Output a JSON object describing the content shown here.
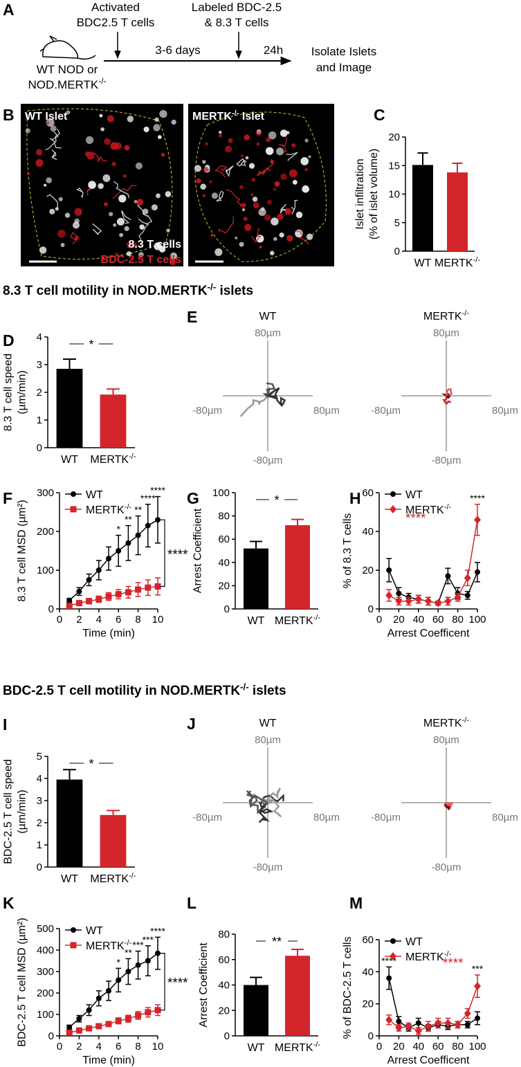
{
  "schematic": {
    "panel": "A",
    "start": [
      "WT NOD or",
      "NOD.MERTK-/-"
    ],
    "step1": [
      "Activated",
      "BDC2.5 T cells"
    ],
    "step2": [
      "Labeled BDC-2.5",
      "& 8.3 T cells"
    ],
    "interval1": "3-6 days",
    "interval2": "24h",
    "end": [
      "Isolate Islets",
      "and Image"
    ]
  },
  "images": {
    "panel": "B",
    "left_title": "WT Islet",
    "right_title": "MERTK-/- Islet",
    "legend": [
      "8.3 T cells",
      "BDC-2.5 T cells"
    ]
  },
  "sections": [
    "8.3 T cell motility in NOD.MERTK-/- islets",
    "BDC-2.5 T cell motility in NOD.MERTK-/- islets"
  ],
  "tracks": [
    {
      "panel": "E",
      "titles": [
        "WT",
        "MERTK-/-"
      ],
      "axis_labels": {
        "top": "80µm",
        "left": "-80µm",
        "right": "80µm",
        "bottom": "-80µm"
      }
    },
    {
      "panel": "J",
      "titles": [
        "WT",
        "MERTK-/-"
      ],
      "axis_labels": {
        "top": "80µm",
        "left": "-80µm",
        "right": "80µm",
        "bottom": "-80µm"
      }
    }
  ],
  "chart_data": [
    {
      "type": "bar",
      "panel": "C",
      "ylabel": [
        "Islet infiltration",
        "(% of islet volume)"
      ],
      "categories": [
        "WT",
        "MERTK-/-"
      ],
      "values": [
        15.1,
        13.8
      ],
      "errors": [
        2.1,
        1.6
      ],
      "colors": [
        "#000000",
        "#d3262c"
      ],
      "ylim": [
        0,
        20
      ],
      "yticks": [
        0,
        5,
        10,
        15,
        20
      ]
    },
    {
      "type": "bar",
      "panel": "D",
      "ylabel": [
        "8.3 T cell speed",
        "(µm/min)"
      ],
      "categories": [
        "WT",
        "MERTK-/-"
      ],
      "values": [
        2.85,
        1.92
      ],
      "errors": [
        0.35,
        0.2
      ],
      "colors": [
        "#000000",
        "#d3262c"
      ],
      "ylim": [
        0,
        4
      ],
      "yticks": [
        0,
        1,
        2,
        3,
        4
      ],
      "significance": "*"
    },
    {
      "type": "line",
      "panel": "F",
      "ylabel": "8.3 T cell MSD (µm²)",
      "xlabel": "Time (min)",
      "x": [
        1,
        2,
        3,
        4,
        5,
        6,
        7,
        8,
        9,
        10
      ],
      "xlim": [
        0,
        10
      ],
      "xticks": [
        0,
        2,
        4,
        6,
        8,
        10
      ],
      "ylim": [
        0,
        300
      ],
      "yticks": [
        0,
        100,
        200,
        300
      ],
      "series": [
        {
          "name": "WT",
          "color": "#000000",
          "marker": "circle",
          "values": [
            22,
            45,
            75,
            100,
            130,
            150,
            170,
            190,
            215,
            230
          ],
          "errors": [
            5,
            10,
            15,
            25,
            30,
            40,
            45,
            50,
            55,
            60
          ],
          "point_labels": [
            null,
            null,
            null,
            null,
            null,
            "*",
            "**",
            "**",
            "****",
            "****"
          ]
        },
        {
          "name": "MERTK-/-",
          "color": "#d3262c",
          "marker": "square",
          "values": [
            8,
            15,
            20,
            25,
            32,
            38,
            43,
            50,
            55,
            58
          ],
          "errors": [
            3,
            5,
            7,
            8,
            10,
            12,
            15,
            18,
            20,
            22
          ]
        }
      ],
      "bracket_label": "****"
    },
    {
      "type": "bar",
      "panel": "G",
      "ylabel": [
        "Arrest Coefficient"
      ],
      "categories": [
        "WT",
        "MERTK-/-"
      ],
      "values": [
        52,
        72
      ],
      "errors": [
        6,
        5
      ],
      "colors": [
        "#000000",
        "#d3262c"
      ],
      "ylim": [
        0,
        100
      ],
      "yticks": [
        0,
        20,
        40,
        60,
        80,
        100
      ],
      "significance": "*"
    },
    {
      "type": "line",
      "panel": "H",
      "ylabel": "% of 8.3 T cells",
      "xlabel": "Arrest Coefficent",
      "x": [
        10,
        20,
        30,
        40,
        50,
        60,
        70,
        80,
        90,
        100
      ],
      "xlim": [
        0,
        100
      ],
      "xticks": [
        0,
        20,
        40,
        60,
        80,
        100
      ],
      "ylim": [
        0,
        60
      ],
      "yticks": [
        0,
        20,
        40,
        60
      ],
      "series": [
        {
          "name": "WT",
          "color": "#000000",
          "marker": "circle",
          "values": [
            20,
            8,
            6,
            5,
            4,
            3,
            17,
            8,
            7,
            19
          ],
          "errors": [
            6,
            3,
            2,
            2,
            2,
            1,
            4,
            3,
            2,
            5
          ]
        },
        {
          "name": "MERTK-/-",
          "color": "#d3262c",
          "marker": "diamond",
          "values": [
            7,
            4,
            4,
            5,
            4,
            3,
            4,
            6,
            16,
            46
          ],
          "errors": [
            3,
            2,
            2,
            2,
            2,
            1,
            2,
            2,
            4,
            8
          ],
          "point_labels": [
            null,
            null,
            null,
            null,
            null,
            null,
            null,
            null,
            null,
            "****"
          ]
        }
      ],
      "overall_label": {
        "text": "****",
        "color": "#d3262c"
      }
    },
    {
      "type": "bar",
      "panel": "I",
      "ylabel": [
        "BDC-2.5  T cell speed",
        "(µm/min)"
      ],
      "categories": [
        "WT",
        "MERTK-/-"
      ],
      "values": [
        3.95,
        2.35
      ],
      "errors": [
        0.45,
        0.2
      ],
      "colors": [
        "#000000",
        "#d3262c"
      ],
      "ylim": [
        0,
        5
      ],
      "yticks": [
        0,
        1,
        2,
        3,
        4,
        5
      ],
      "significance": "*"
    },
    {
      "type": "line",
      "panel": "K",
      "ylabel": "BDC-2.5  T cell MSD (µm²)",
      "xlabel": "Time (min)",
      "x": [
        1,
        2,
        3,
        4,
        5,
        6,
        7,
        8,
        9,
        10
      ],
      "xlim": [
        0,
        10
      ],
      "xticks": [
        0,
        2,
        4,
        6,
        8,
        10
      ],
      "ylim": [
        0,
        500
      ],
      "yticks": [
        0,
        100,
        200,
        300,
        400,
        500
      ],
      "series": [
        {
          "name": "WT",
          "color": "#000000",
          "marker": "circle",
          "values": [
            40,
            80,
            120,
            175,
            210,
            260,
            300,
            330,
            350,
            385
          ],
          "errors": [
            10,
            15,
            25,
            35,
            45,
            55,
            60,
            65,
            70,
            75
          ],
          "point_labels": [
            null,
            null,
            null,
            null,
            null,
            "*",
            "**",
            "***",
            "***",
            "****"
          ]
        },
        {
          "name": "MERTK-/-",
          "color": "#d3262c",
          "marker": "square",
          "values": [
            15,
            25,
            35,
            45,
            55,
            70,
            80,
            95,
            110,
            120
          ],
          "errors": [
            4,
            6,
            8,
            10,
            12,
            14,
            16,
            18,
            22,
            25
          ]
        }
      ],
      "bracket_label": "****"
    },
    {
      "type": "bar",
      "panel": "L",
      "ylabel": [
        "Arrest Coefficient"
      ],
      "categories": [
        "WT",
        "MERTK-/-"
      ],
      "values": [
        40,
        63
      ],
      "errors": [
        6,
        5
      ],
      "colors": [
        "#000000",
        "#d3262c"
      ],
      "ylim": [
        0,
        80
      ],
      "yticks": [
        0,
        20,
        40,
        60,
        80
      ],
      "significance": "**"
    },
    {
      "type": "line",
      "panel": "M",
      "ylabel": "% of BDC-2.5 T cells",
      "xlabel": "Arrest Coefficent",
      "x": [
        10,
        20,
        30,
        40,
        50,
        60,
        70,
        80,
        90,
        100
      ],
      "xlim": [
        0,
        100
      ],
      "xticks": [
        0,
        20,
        40,
        60,
        80,
        100
      ],
      "ylim": [
        0,
        60
      ],
      "yticks": [
        0,
        20,
        40,
        60
      ],
      "series": [
        {
          "name": "WT",
          "color": "#000000",
          "marker": "circle",
          "values": [
            36,
            9,
            5,
            8,
            5,
            7,
            6,
            7,
            7,
            11
          ],
          "errors": [
            7,
            3,
            2,
            3,
            2,
            2,
            2,
            2,
            2,
            4
          ],
          "point_labels": [
            "****",
            null,
            null,
            null,
            null,
            null,
            null,
            null,
            null,
            null
          ]
        },
        {
          "name": "MERTK-/-",
          "color": "#d3262c",
          "marker": "diamond",
          "values": [
            10,
            5,
            6,
            3,
            6,
            8,
            8,
            7,
            14,
            31
          ],
          "errors": [
            3,
            2,
            2,
            2,
            3,
            3,
            3,
            2,
            3,
            7
          ],
          "point_labels": [
            null,
            null,
            null,
            null,
            null,
            null,
            null,
            null,
            null,
            "***"
          ]
        }
      ],
      "overall_label": {
        "text": "****",
        "color": "#d3262c"
      }
    }
  ]
}
